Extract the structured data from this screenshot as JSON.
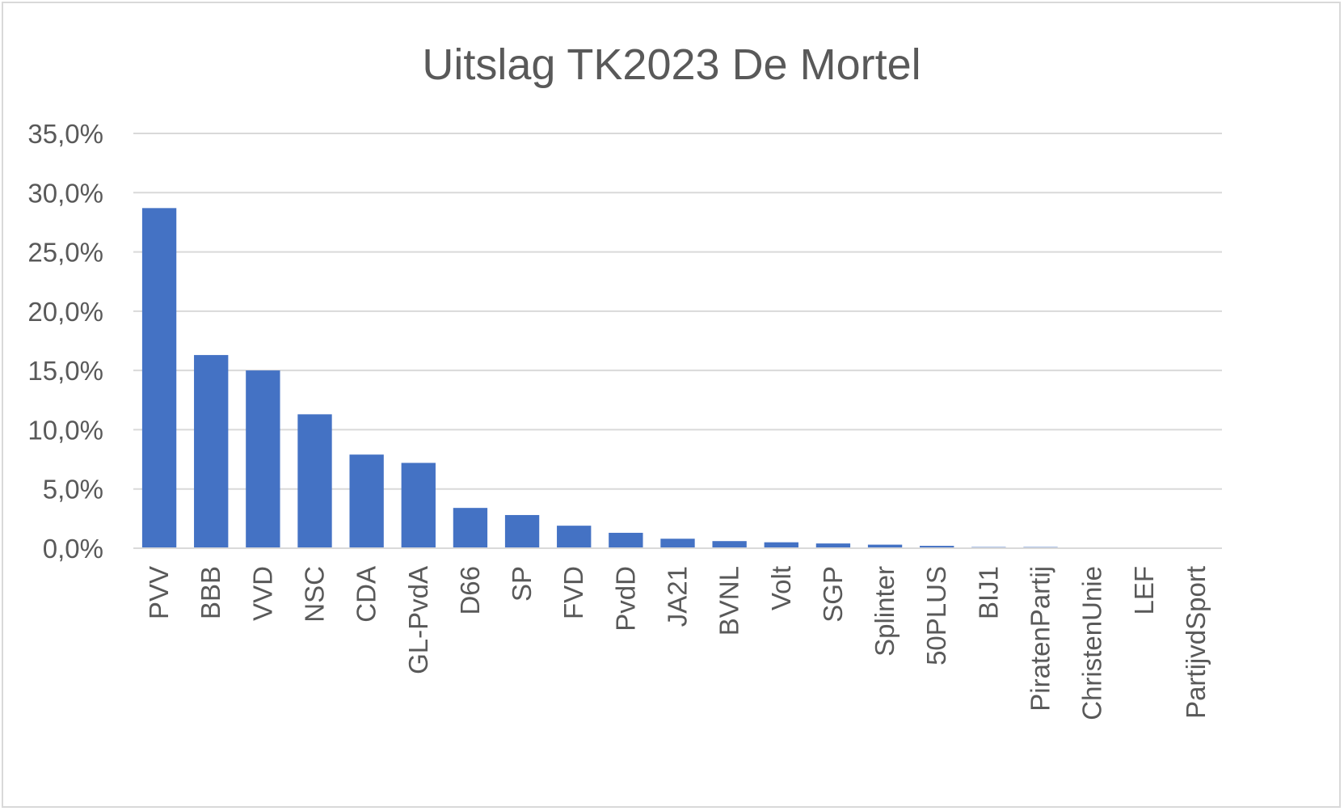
{
  "chart_data": {
    "type": "bar",
    "title": "Uitslag TK2023 De Mortel",
    "xlabel": "",
    "ylabel": "",
    "ylim": [
      0,
      35
    ],
    "yticks": [
      "0,0%",
      "5,0%",
      "10,0%",
      "15,0%",
      "20,0%",
      "25,0%",
      "30,0%",
      "35,0%"
    ],
    "grid": true,
    "legend": "none",
    "bar_color": "#4472c4",
    "categories": [
      "PVV",
      "BBB",
      "VVD",
      "NSC",
      "CDA",
      "GL-PvdA",
      "D66",
      "SP",
      "FVD",
      "PvdD",
      "JA21",
      "BVNL",
      "Volt",
      "SGP",
      "Splinter",
      "50PLUS",
      "BIJ1",
      "PiratenPartij",
      "ChristenUnie",
      "LEF",
      "PartijvdSport"
    ],
    "values": [
      28.7,
      16.3,
      15.0,
      11.3,
      7.9,
      7.2,
      3.4,
      2.8,
      1.9,
      1.3,
      0.8,
      0.6,
      0.5,
      0.4,
      0.3,
      0.2,
      0.1,
      0.1,
      0.0,
      0.0,
      0.0
    ]
  }
}
